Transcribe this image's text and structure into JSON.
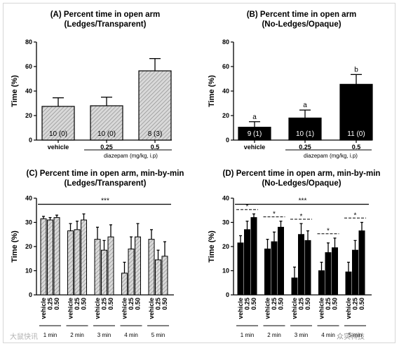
{
  "chart_data": [
    {
      "panel": "A",
      "type": "bar",
      "title": "(A) Percent time in open arm",
      "subtitle": "(Ledges/Transparent)",
      "ylabel": "Time (%)",
      "ylim": [
        0,
        80
      ],
      "yticks": [
        "0",
        "20",
        "40",
        "60",
        "80"
      ],
      "categories": [
        "vehicle",
        "0.25",
        "0.5"
      ],
      "values": [
        27.5,
        28,
        56.5
      ],
      "errors": [
        7,
        7,
        10
      ],
      "n_labels": [
        "10 (0)",
        "10 (0)",
        "8 (3)"
      ],
      "group_label": "diazepam (mg/kg, i.p)",
      "fill": "hatched",
      "colors": {
        "bar": "#d9d9d9",
        "hatch": "#8a8a8a"
      }
    },
    {
      "panel": "B",
      "type": "bar",
      "title": "(B) Percent time in open arm",
      "subtitle": "(No-Ledges/Opaque)",
      "ylabel": "Time (%)",
      "ylim": [
        0,
        80
      ],
      "yticks": [
        "0",
        "20",
        "40",
        "60",
        "80"
      ],
      "categories": [
        "vehicle",
        "0.25",
        "0.5"
      ],
      "values": [
        10.5,
        18,
        45.5
      ],
      "errors": [
        4.5,
        6.5,
        8
      ],
      "n_labels": [
        "9 (1)",
        "10 (1)",
        "11 (0)"
      ],
      "sig_letters": [
        "a",
        "a",
        "b"
      ],
      "group_label": "diazepam (mg/kg, i.p)",
      "fill": "solid",
      "colors": {
        "bar": "#000000"
      }
    },
    {
      "panel": "C",
      "type": "bar",
      "title": "(C) Percent time in open arm, min-by-min",
      "subtitle": "(Ledges/Transparent)",
      "ylabel": "Time (%)",
      "ylim": [
        0,
        40
      ],
      "yticks": [
        "0",
        "10",
        "20",
        "30",
        "40"
      ],
      "bar_labels": [
        "vehicle",
        "0.25",
        "0.50"
      ],
      "groups": [
        "1 min",
        "2 min",
        "3 min",
        "4 min",
        "5 min"
      ],
      "series": [
        {
          "values": [
            31.5,
            26.5,
            23,
            9,
            23
          ],
          "errors": [
            1,
            3,
            5,
            4.5,
            4
          ]
        },
        {
          "values": [
            31,
            27,
            18.5,
            19,
            14.5
          ],
          "errors": [
            1,
            3.5,
            4,
            5,
            4
          ]
        },
        {
          "values": [
            32,
            31,
            24,
            24,
            16
          ],
          "errors": [
            1,
            2.5,
            5,
            5.5,
            6
          ]
        }
      ],
      "overall_sig": "***",
      "fill": "hatched",
      "colors": {
        "bar": "#d9d9d9",
        "hatch": "#8a8a8a"
      }
    },
    {
      "panel": "D",
      "type": "bar",
      "title": "(D) Percent time in open arm, min-by-min",
      "subtitle": "(No-Ledges/Opaque)",
      "ylabel": "Time (%)",
      "ylim": [
        0,
        40
      ],
      "yticks": [
        "0",
        "10",
        "20",
        "30",
        "40"
      ],
      "bar_labels": [
        "vehicle",
        "0.25",
        "0.50"
      ],
      "groups": [
        "1 min",
        "2 min",
        "3 min",
        "4 min",
        "5 min"
      ],
      "series": [
        {
          "values": [
            21.5,
            19,
            7,
            10,
            9.5
          ],
          "errors": [
            3,
            4,
            4.5,
            3.5,
            4
          ]
        },
        {
          "values": [
            27,
            22,
            25,
            17.5,
            18.5
          ],
          "errors": [
            3.5,
            4,
            4.5,
            4,
            4
          ]
        },
        {
          "values": [
            32,
            28,
            22.5,
            19.5,
            26.5
          ],
          "errors": [
            1.5,
            2.5,
            4,
            4,
            3.5
          ]
        }
      ],
      "overall_sig": "***",
      "group_sig": [
        "*",
        "*",
        "*",
        "*",
        "*"
      ],
      "fill": "solid",
      "colors": {
        "bar": "#000000"
      }
    }
  ],
  "watermarks": {
    "left": "大鼠快讯",
    "right": "众实科技"
  }
}
